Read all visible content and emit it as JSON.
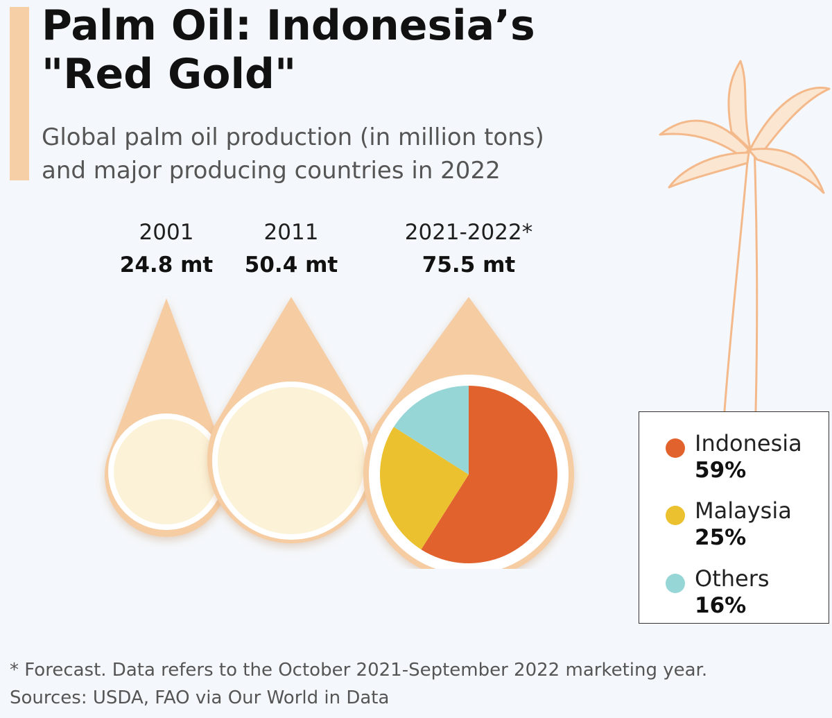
{
  "header": {
    "title": "Palm Oil: Indonesia’s\n\"Red Gold\"",
    "subtitle": "Global palm oil production (in million tons)\nand major producing countries in 2022"
  },
  "chart_data": {
    "type": "pie",
    "production": [
      {
        "year": "2001",
        "value_label": "24.8 mt",
        "value": 24.8
      },
      {
        "year": "2011",
        "value_label": "50.4 mt",
        "value": 50.4
      },
      {
        "year": "2021-2022*",
        "value_label": "75.5 mt",
        "value": 75.5
      }
    ],
    "shares_2022": [
      {
        "name": "Indonesia",
        "pct_label": "59%",
        "value": 59,
        "color": "#e2622e"
      },
      {
        "name": "Malaysia",
        "pct_label": "25%",
        "value": 25,
        "color": "#ebc12f"
      },
      {
        "name": "Others",
        "pct_label": "16%",
        "value": 16,
        "color": "#96d6d6"
      }
    ],
    "colors": {
      "drop": "#f6cca3",
      "drop_fill": "#fcf2d8",
      "ring": "#ffffff"
    }
  },
  "footnote": "* Forecast. Data refers to the October 2021-September 2022 marketing year.\nSources: USDA, FAO via Our World in Data"
}
